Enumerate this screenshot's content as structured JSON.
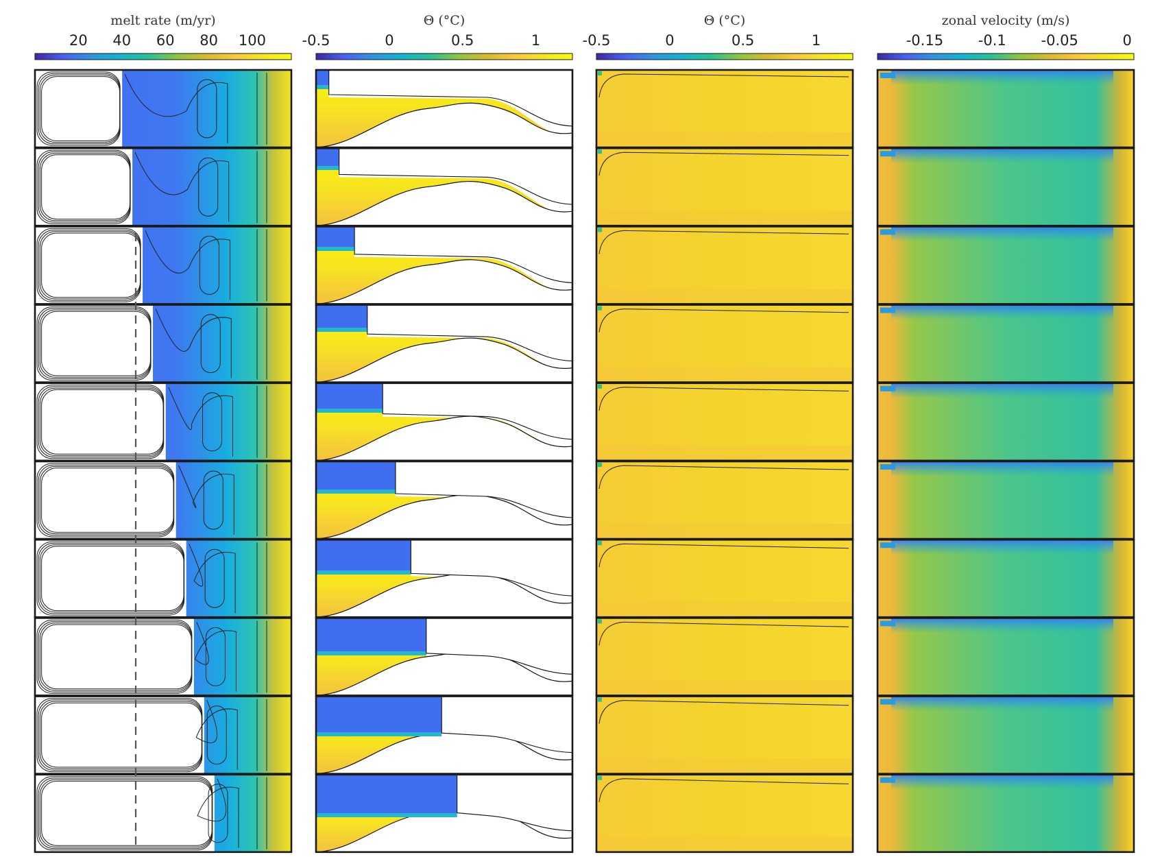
{
  "chart_data": [
    {
      "type": "heatmap",
      "title": "melt rate (m/yr)",
      "colorbar": {
        "ticks": [
          "20",
          "40",
          "60",
          "80",
          "100"
        ],
        "range": [
          0,
          118
        ]
      },
      "n_rows": 10,
      "panel_kind": "melt",
      "dashed_reference_line": true,
      "ice_front_fraction": [
        0.34,
        0.38,
        0.42,
        0.46,
        0.51,
        0.55,
        0.59,
        0.62,
        0.66,
        0.7
      ],
      "note": "plan-view melt-rate maps with streamlines; blank region = grounded ice"
    },
    {
      "type": "heatmap",
      "title": "Θ (°C)",
      "colorbar": {
        "ticks": [
          "-0.5",
          "0",
          "0.5",
          "1"
        ],
        "range": [
          -0.5,
          1.25
        ]
      },
      "n_rows": 10,
      "panel_kind": "section",
      "ice_front_fraction": [
        0.05,
        0.09,
        0.15,
        0.2,
        0.26,
        0.31,
        0.37,
        0.43,
        0.49,
        0.55
      ],
      "note": "vertical temperature sections beneath an ice shelf over a seabed sill"
    },
    {
      "type": "heatmap",
      "title": "Θ (°C)",
      "colorbar": {
        "ticks": [
          "-0.5",
          "0",
          "0.5",
          "1"
        ],
        "range": [
          -0.5,
          1.25
        ]
      },
      "n_rows": 10,
      "panel_kind": "temperature_plan",
      "note": "plan-view temperature maps, nearly uniform around 1 °C"
    },
    {
      "type": "heatmap",
      "title": "zonal velocity (m/s)",
      "colorbar": {
        "ticks": [
          "-0.15",
          "-0.1",
          "-0.05",
          "0"
        ],
        "range": [
          -0.185,
          0.005
        ]
      },
      "n_rows": 10,
      "panel_kind": "velocity",
      "note": "plan-view zonal velocity maps"
    }
  ],
  "colors": {
    "colormap": [
      "#3e26a8",
      "#4662f8",
      "#2f94e0",
      "#12b4cf",
      "#27c195",
      "#8cc63f",
      "#d8ba2d",
      "#fcc73c",
      "#f7e322",
      "#f9fb0e"
    ],
    "melt_strong": "#4468f4",
    "section_cool": "#3f6ef0",
    "axis_frame": "#1a1a1a"
  }
}
